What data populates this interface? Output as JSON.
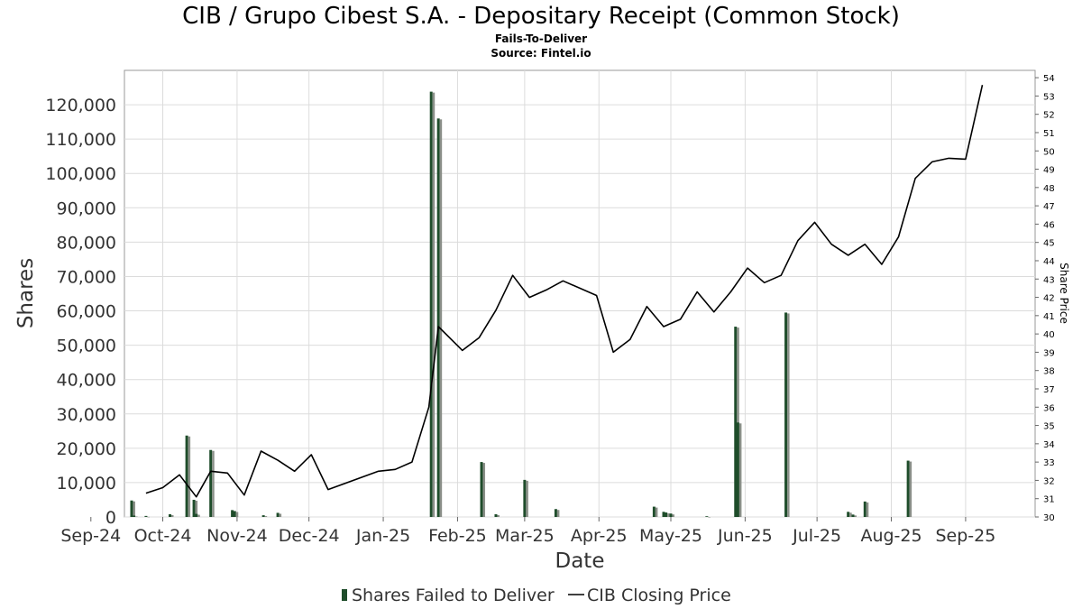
{
  "chart_data": {
    "type": "bar",
    "title": "CIB / Grupo Cibest S.A. - Depositary Receipt (Common Stock)",
    "subtitle": "Fails-To-Deliver",
    "source": "Source: Fintel.io",
    "xlabel": "Date",
    "ylabel": "Shares",
    "y2label": "Share Price",
    "ylim": [
      0,
      130000
    ],
    "y2lim": [
      30,
      54.4
    ],
    "xlim": [
      "2024-09-15",
      "2025-09-30"
    ],
    "y_ticks": [
      0,
      10000,
      20000,
      30000,
      40000,
      50000,
      60000,
      70000,
      80000,
      90000,
      100000,
      110000,
      120000
    ],
    "y_tick_labels": [
      "0",
      "10,000",
      "20,000",
      "30,000",
      "40,000",
      "50,000",
      "60,000",
      "70,000",
      "80,000",
      "90,000",
      "100,000",
      "110,000",
      "120,000"
    ],
    "y2_ticks": [
      30,
      31,
      32,
      33,
      34,
      35,
      36,
      37,
      38,
      39,
      40,
      41,
      42,
      43,
      44,
      45,
      46,
      47,
      48,
      49,
      50,
      51,
      52,
      53,
      54
    ],
    "x_ticks": [
      {
        "label": "Sep-24",
        "date": "2024-09-01"
      },
      {
        "label": "Oct-24",
        "date": "2024-10-01"
      },
      {
        "label": "Nov-24",
        "date": "2024-11-01"
      },
      {
        "label": "Dec-24",
        "date": "2024-12-01"
      },
      {
        "label": "Jan-25",
        "date": "2025-01-01"
      },
      {
        "label": "Feb-25",
        "date": "2025-02-01"
      },
      {
        "label": "Mar-25",
        "date": "2025-03-01"
      },
      {
        "label": "Apr-25",
        "date": "2025-04-01"
      },
      {
        "label": "May-25",
        "date": "2025-05-01"
      },
      {
        "label": "Jun-25",
        "date": "2025-06-01"
      },
      {
        "label": "Jul-25",
        "date": "2025-07-01"
      },
      {
        "label": "Aug-25",
        "date": "2025-08-01"
      },
      {
        "label": "Sep-25",
        "date": "2025-09-01"
      }
    ],
    "grid": true,
    "legend_position": "bottom-center",
    "series": [
      {
        "name": "Shares Failed to Deliver",
        "type": "bar",
        "axis": "left",
        "color": "#1f4d2b",
        "points": [
          {
            "date": "2024-09-18",
            "value": 4800
          },
          {
            "date": "2024-09-19",
            "value": 400
          },
          {
            "date": "2024-09-24",
            "value": 300
          },
          {
            "date": "2024-10-04",
            "value": 800
          },
          {
            "date": "2024-10-11",
            "value": 23700
          },
          {
            "date": "2024-10-14",
            "value": 5000
          },
          {
            "date": "2024-10-15",
            "value": 900
          },
          {
            "date": "2024-10-21",
            "value": 19500
          },
          {
            "date": "2024-10-30",
            "value": 2000
          },
          {
            "date": "2024-10-31",
            "value": 1700
          },
          {
            "date": "2024-11-12",
            "value": 500
          },
          {
            "date": "2024-11-18",
            "value": 1200
          },
          {
            "date": "2025-01-21",
            "value": 123800
          },
          {
            "date": "2025-01-24",
            "value": 116000
          },
          {
            "date": "2025-02-11",
            "value": 16000
          },
          {
            "date": "2025-02-17",
            "value": 800
          },
          {
            "date": "2025-03-01",
            "value": 10800
          },
          {
            "date": "2025-03-14",
            "value": 2300
          },
          {
            "date": "2025-04-24",
            "value": 3000
          },
          {
            "date": "2025-04-28",
            "value": 1500
          },
          {
            "date": "2025-04-29",
            "value": 1300
          },
          {
            "date": "2025-05-01",
            "value": 1000
          },
          {
            "date": "2025-05-16",
            "value": 200
          },
          {
            "date": "2025-05-28",
            "value": 55400
          },
          {
            "date": "2025-05-29",
            "value": 27500
          },
          {
            "date": "2025-06-18",
            "value": 59500
          },
          {
            "date": "2025-07-14",
            "value": 1500
          },
          {
            "date": "2025-07-16",
            "value": 700
          },
          {
            "date": "2025-07-21",
            "value": 4500
          },
          {
            "date": "2025-08-08",
            "value": 16400
          }
        ]
      },
      {
        "name": "CIB Closing Price",
        "type": "line",
        "axis": "right",
        "color": "#000000",
        "points": [
          {
            "date": "2024-09-24",
            "value": 31.3
          },
          {
            "date": "2024-10-01",
            "value": 31.6
          },
          {
            "date": "2024-10-08",
            "value": 32.3
          },
          {
            "date": "2024-10-15",
            "value": 31.1
          },
          {
            "date": "2024-10-21",
            "value": 32.5
          },
          {
            "date": "2024-10-28",
            "value": 32.4
          },
          {
            "date": "2024-11-04",
            "value": 31.2
          },
          {
            "date": "2024-11-11",
            "value": 33.6
          },
          {
            "date": "2024-11-18",
            "value": 33.1
          },
          {
            "date": "2024-11-25",
            "value": 32.5
          },
          {
            "date": "2024-12-02",
            "value": 33.4
          },
          {
            "date": "2024-12-09",
            "value": 31.5
          },
          {
            "date": "2024-12-30",
            "value": 32.5
          },
          {
            "date": "2025-01-06",
            "value": 32.6
          },
          {
            "date": "2025-01-13",
            "value": 33.0
          },
          {
            "date": "2025-01-20",
            "value": 36.0
          },
          {
            "date": "2025-01-24",
            "value": 40.4
          },
          {
            "date": "2025-02-03",
            "value": 39.1
          },
          {
            "date": "2025-02-10",
            "value": 39.8
          },
          {
            "date": "2025-02-17",
            "value": 41.3
          },
          {
            "date": "2025-02-24",
            "value": 43.2
          },
          {
            "date": "2025-03-03",
            "value": 42.0
          },
          {
            "date": "2025-03-10",
            "value": 42.4
          },
          {
            "date": "2025-03-17",
            "value": 42.9
          },
          {
            "date": "2025-03-31",
            "value": 42.1
          },
          {
            "date": "2025-04-07",
            "value": 39.0
          },
          {
            "date": "2025-04-14",
            "value": 39.7
          },
          {
            "date": "2025-04-21",
            "value": 41.5
          },
          {
            "date": "2025-04-28",
            "value": 40.4
          },
          {
            "date": "2025-05-05",
            "value": 40.8
          },
          {
            "date": "2025-05-12",
            "value": 42.3
          },
          {
            "date": "2025-05-19",
            "value": 41.2
          },
          {
            "date": "2025-05-26",
            "value": 42.3
          },
          {
            "date": "2025-06-02",
            "value": 43.6
          },
          {
            "date": "2025-06-09",
            "value": 42.8
          },
          {
            "date": "2025-06-16",
            "value": 43.2
          },
          {
            "date": "2025-06-23",
            "value": 45.1
          },
          {
            "date": "2025-06-30",
            "value": 46.1
          },
          {
            "date": "2025-07-07",
            "value": 44.9
          },
          {
            "date": "2025-07-14",
            "value": 44.3
          },
          {
            "date": "2025-07-21",
            "value": 44.9
          },
          {
            "date": "2025-07-28",
            "value": 43.8
          },
          {
            "date": "2025-08-04",
            "value": 45.3
          },
          {
            "date": "2025-08-11",
            "value": 48.5
          },
          {
            "date": "2025-08-18",
            "value": 49.4
          },
          {
            "date": "2025-08-25",
            "value": 49.6
          },
          {
            "date": "2025-09-01",
            "value": 49.55
          },
          {
            "date": "2025-09-08",
            "value": 53.6
          }
        ]
      }
    ]
  }
}
